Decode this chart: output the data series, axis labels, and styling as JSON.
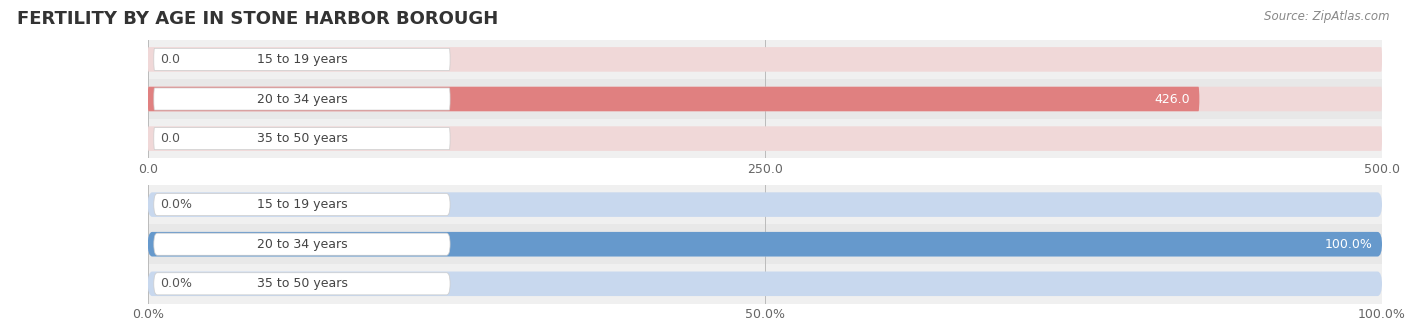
{
  "title": "FERTILITY BY AGE IN STONE HARBOR BOROUGH",
  "source": "Source: ZipAtlas.com",
  "top_chart": {
    "categories": [
      "15 to 19 years",
      "20 to 34 years",
      "35 to 50 years"
    ],
    "values": [
      0.0,
      426.0,
      0.0
    ],
    "bar_color": "#e08080",
    "bar_bg_color": "#f0d8d8",
    "xlim": [
      0,
      500
    ],
    "xticks": [
      0.0,
      250.0,
      500.0
    ],
    "xtick_labels": [
      "0.0",
      "250.0",
      "500.0"
    ],
    "value_labels": [
      "0.0",
      "426.0",
      "0.0"
    ]
  },
  "bottom_chart": {
    "categories": [
      "15 to 19 years",
      "20 to 34 years",
      "35 to 50 years"
    ],
    "values": [
      0.0,
      100.0,
      0.0
    ],
    "bar_color": "#6699cc",
    "bar_bg_color": "#c8d8ee",
    "xlim": [
      0,
      100
    ],
    "xticks": [
      0.0,
      50.0,
      100.0
    ],
    "xtick_labels": [
      "0.0%",
      "50.0%",
      "100.0%"
    ],
    "value_labels": [
      "0.0%",
      "100.0%",
      "0.0%"
    ]
  },
  "label_color": "#444444",
  "title_fontsize": 13,
  "label_fontsize": 9,
  "tick_fontsize": 9,
  "value_fontsize": 9,
  "bar_height": 0.62,
  "bg_color": "#ffffff",
  "row_even_bg": "#f0f0f0",
  "row_odd_bg": "#e8e8e8",
  "white_label_bg": "#ffffff"
}
